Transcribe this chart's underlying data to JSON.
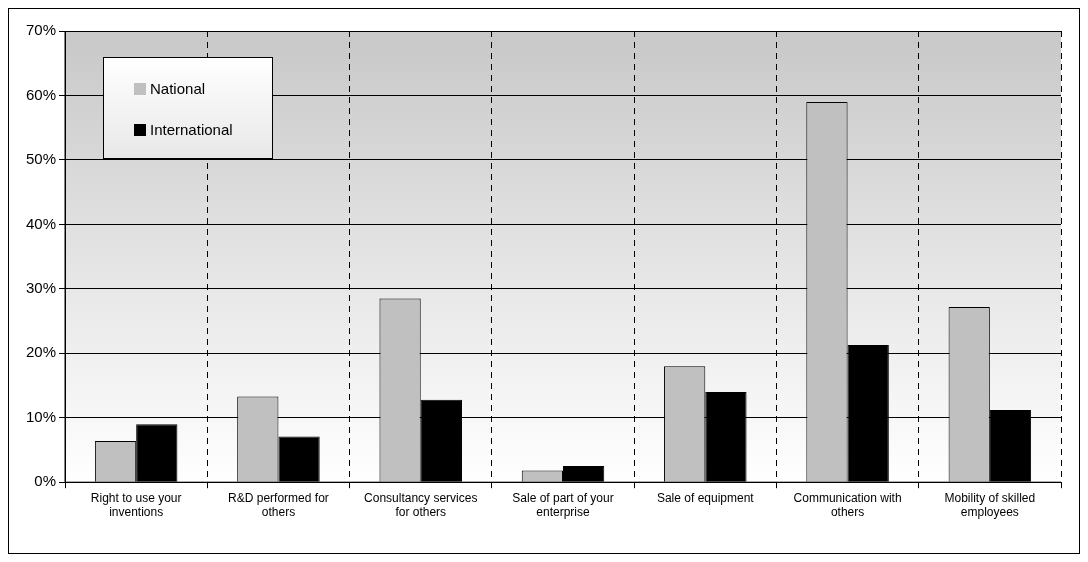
{
  "chart_data": {
    "type": "bar",
    "categories": [
      "Right to use your inventions",
      "R&D performed for others",
      "Consultancy services for others",
      "Sale of part of your enterprise",
      "Sale of equipment",
      "Communication with others",
      "Mobility of skilled employees"
    ],
    "series": [
      {
        "name": "National",
        "color": "#c0c0c0",
        "values": [
          6.4,
          13.3,
          28.5,
          1.8,
          18.0,
          59.0,
          27.2
        ]
      },
      {
        "name": "International",
        "color": "#000000",
        "values": [
          9.0,
          7.1,
          12.8,
          2.5,
          14.0,
          21.3,
          11.2
        ]
      }
    ],
    "ylim": [
      0,
      70
    ],
    "yticks": [
      {
        "value": 0,
        "label": "0%"
      },
      {
        "value": 10,
        "label": "10%"
      },
      {
        "value": 20,
        "label": "20%"
      },
      {
        "value": 30,
        "label": "30%"
      },
      {
        "value": 40,
        "label": "40%"
      },
      {
        "value": 50,
        "label": "50%"
      },
      {
        "value": 60,
        "label": "60%"
      },
      {
        "value": 70,
        "label": "70%"
      }
    ],
    "grid": true,
    "legend": "top left"
  }
}
